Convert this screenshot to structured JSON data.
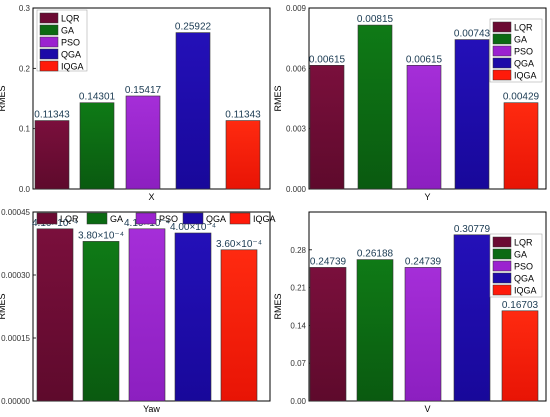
{
  "chart_data": [
    {
      "type": "bar",
      "xlabel": "X",
      "ylabel": "RMES",
      "categories": [
        "LQR",
        "GA",
        "PSO",
        "QGA",
        "IQGA"
      ],
      "values": [
        0.11343,
        0.14301,
        0.15417,
        0.25922,
        0.11343
      ],
      "value_labels": [
        "0.11343",
        "0.14301",
        "0.15417",
        "0.25922",
        "0.11343"
      ],
      "ylim": [
        0,
        0.3
      ],
      "yticks": [
        "0.0",
        "0.1",
        "0.2",
        "0.3"
      ],
      "legend": "top-left"
    },
    {
      "type": "bar",
      "xlabel": "Y",
      "ylabel": "RMES",
      "categories": [
        "LQR",
        "GA",
        "PSO",
        "QGA",
        "IQGA"
      ],
      "values": [
        0.00615,
        0.00815,
        0.00615,
        0.00743,
        0.00429
      ],
      "value_labels": [
        "0.00615",
        "0.00815",
        "0.00615",
        "0.00743",
        "0.00429"
      ],
      "ylim": [
        0,
        0.009
      ],
      "yticks": [
        "0.000",
        "0.003",
        "0.006",
        "0.009"
      ],
      "legend": "top-right"
    },
    {
      "type": "bar",
      "xlabel": "Yaw",
      "ylabel": "RMES",
      "categories": [
        "LQR",
        "GA",
        "PSO",
        "QGA",
        "IQGA"
      ],
      "values": [
        0.00041,
        0.00038,
        0.00041,
        0.0004,
        0.00036
      ],
      "value_labels": [
        "4.10×10⁻⁴",
        "3.80×10⁻⁴",
        "4.10×10⁻⁴",
        "4.00×10⁻⁴",
        "3.60×10⁻⁴"
      ],
      "ylim": [
        0,
        0.00045
      ],
      "yticks": [
        "0.00000",
        "0.00015",
        "0.00030",
        "0.00045"
      ],
      "legend": "top (horizontal)"
    },
    {
      "type": "bar",
      "xlabel": "V",
      "ylabel": "RMES",
      "categories": [
        "LQR",
        "GA",
        "PSO",
        "QGA",
        "IQGA"
      ],
      "values": [
        0.24739,
        0.26188,
        0.24739,
        0.30779,
        0.16703
      ],
      "value_labels": [
        "0.24739",
        "0.26188",
        "0.24739",
        "0.30779",
        "0.16703"
      ],
      "ylim": [
        0,
        0.35
      ],
      "yticks": [
        "0.00",
        "0.07",
        "0.14",
        "0.21",
        "0.28"
      ],
      "legend": "top-right"
    }
  ],
  "colors": {
    "LQR": "#6b0a33",
    "GA": "#0b6a12",
    "PSO": "#9b22cf",
    "QGA": "#1d0aa8",
    "IQGA": "#ff1a0a",
    "value_label_highlight": "#ff1a6a",
    "value_label": "#1a3a52"
  }
}
